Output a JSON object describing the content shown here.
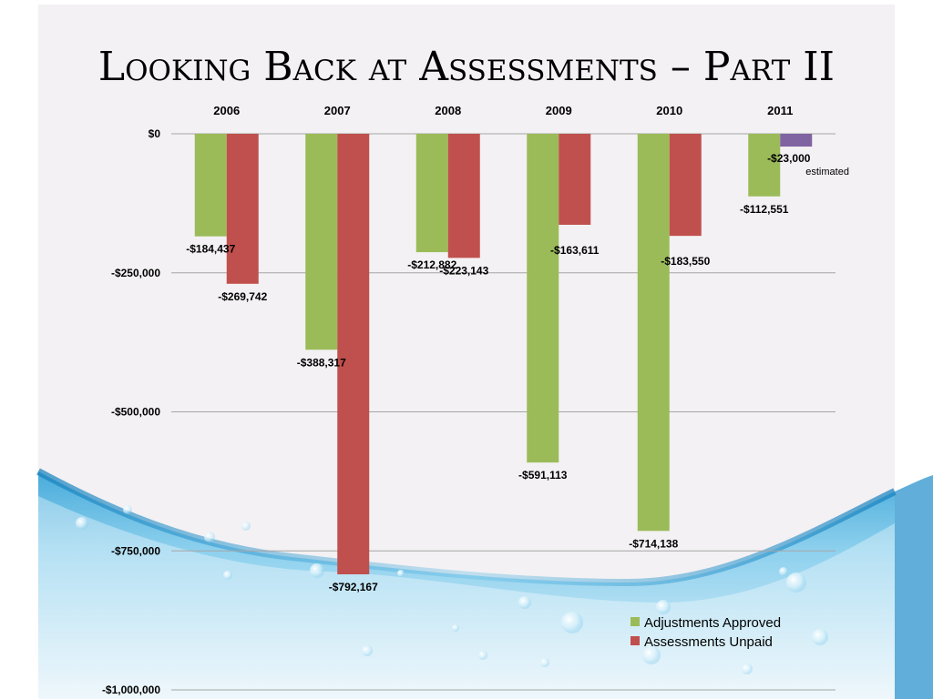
{
  "title": "Looking Back at Assessments – Part II",
  "colors": {
    "adjustments": "#9bbb59",
    "unpaid": "#c0504d",
    "estimated": "#8064a2",
    "grid": "#a6a6a6",
    "water_dark": "#1e8fc7",
    "water_light": "#bfe4f5"
  },
  "chart_data": {
    "type": "bar",
    "title": "",
    "xlabel": "",
    "ylabel": "",
    "categories": [
      "2006",
      "2007",
      "2008",
      "2009",
      "2010",
      "2011"
    ],
    "ylim": [
      -1000000,
      0
    ],
    "yticks": [
      0,
      -250000,
      -500000,
      -750000,
      -1000000
    ],
    "ytick_labels": [
      "$0",
      "-$250,000",
      "-$500,000",
      "-$750,000",
      "-$1,000,000"
    ],
    "x_axis_position": "top",
    "grid": true,
    "legend_position": "bottom-right",
    "series": [
      {
        "name": "Adjustments Approved",
        "color": "#9bbb59",
        "values": [
          -184437,
          -388317,
          -212882,
          -591113,
          -714138,
          -112551
        ],
        "labels": [
          "-$184,437",
          "-$388,317",
          "-$212,882",
          "-$591,113",
          "-$714,138",
          "-$112,551"
        ]
      },
      {
        "name": "Assessments Unpaid",
        "color": "#c0504d",
        "values": [
          -269742,
          -792167,
          -223143,
          -163611,
          -183550,
          -23000
        ],
        "labels": [
          "-$269,742",
          "-$792,167",
          "-$223,143",
          "-$163,611",
          "-$183,550",
          "-$23,000"
        ],
        "point_colors": [
          "#c0504d",
          "#c0504d",
          "#c0504d",
          "#c0504d",
          "#c0504d",
          "#8064a2"
        ]
      }
    ],
    "annotations": [
      {
        "text": "estimated",
        "category": "2011",
        "series": "Assessments Unpaid"
      }
    ]
  }
}
